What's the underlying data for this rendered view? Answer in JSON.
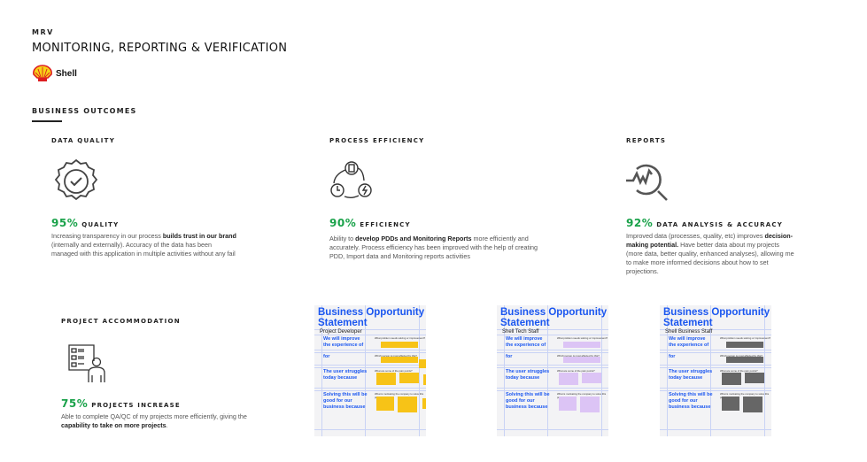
{
  "header": {
    "eyebrow": "MRV",
    "title": "MONITORING, REPORTING & VERIFICATION",
    "logo_text": "Shell"
  },
  "section_title": "BUSINESS OUTCOMES",
  "colors": {
    "accent_green": "#1aa24a",
    "statement_blue": "#1a56f0",
    "sticky_yellow": "#f7c317",
    "sticky_purple": "#dcc4f5",
    "sticky_gray": "#666666"
  },
  "outcomes": [
    {
      "heading": "DATA QUALITY",
      "icon": "badge-check-icon",
      "percent": "95%",
      "label": "QUALITY",
      "text": [
        {
          "t": "Increasing transparency in our process "
        },
        {
          "t": "builds trust in our brand",
          "b": true
        },
        {
          "t": " (internally and externally). Accuracy of the data has been managed with this application in multiple activities without any fail"
        }
      ]
    },
    {
      "heading": "PROCESS EFFICIENCY",
      "icon": "process-cycle-icon",
      "percent": "90%",
      "label": "EFFICIENCY",
      "text": [
        {
          "t": "Ability to "
        },
        {
          "t": "develop PDDs and Monitoring Reports",
          "b": true
        },
        {
          "t": " more efficiently and accurately. Process efficiency has been improved with the help of creating PDD, Import data and Monitoring reports activities"
        }
      ]
    },
    {
      "heading": "REPORTS",
      "icon": "analytics-magnifier-icon",
      "percent": "92%",
      "label": "DATA ANALYSIS & ACCURACY",
      "text": [
        {
          "t": "Improved data (processes, quality, etc) improves "
        },
        {
          "t": "decision-making potential.",
          "b": true
        },
        {
          "t": " Have better data about my projects (more data, better quality, enhanced analyses), allowing me to make more informed decisions about how to set projections."
        }
      ]
    },
    {
      "heading": "PROJECT ACCOMMODATION",
      "icon": "checklist-person-icon",
      "percent": "75%",
      "label": "PROJECTS INCREASE",
      "text": [
        {
          "t": "Able to complete QA/QC of my projects more efficiently, giving  the "
        },
        {
          "t": "capability to take on more projects",
          "b": true
        },
        {
          "t": "."
        }
      ]
    }
  ],
  "statements": [
    {
      "title": "Business Opportunity Statement",
      "role": "Project Developer",
      "sticky": "yellow"
    },
    {
      "title": "Business Opportunity Statement",
      "role": "Shell Tech Staff",
      "sticky": "purple"
    },
    {
      "title": "Business Opportunity Statement",
      "role": "Shell Business Staff",
      "sticky": "gray"
    }
  ],
  "statement_rows": [
    "We will improve the experience of",
    "for",
    "The user struggles today because",
    "Solving this will be good for our business because"
  ],
  "statement_questions": [
    "What problem needs solving or improvement?",
    "Which person is most affected by this?",
    "What are some of the pain points?",
    "What is motivating the company to solve this problem?"
  ]
}
